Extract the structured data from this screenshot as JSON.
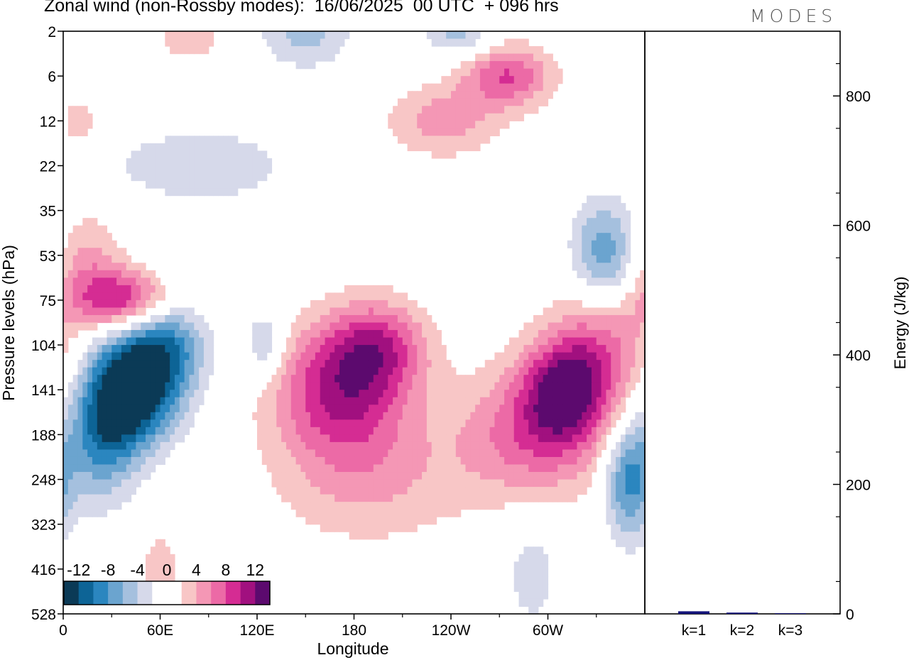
{
  "header": {
    "title": "Zonal wind (non-Rossby modes):  16/06/2025  00 UTC  + 096 hrs",
    "brand": "MODES"
  },
  "colors": {
    "levels": [
      "#0b3a56",
      "#0d6496",
      "#2b86bf",
      "#6ba4cf",
      "#a5c0de",
      "#d6d9ea",
      "#ffffff",
      "#ffffff",
      "#f8c6c6",
      "#f497b5",
      "#ec6aa6",
      "#d52c93",
      "#a1107f",
      "#5c0a6e"
    ],
    "bar": "#14147a"
  },
  "chart_data": [
    {
      "type": "heatmap",
      "xlabel": "Longitude",
      "ylabel": "Pressure levels (hPa)",
      "x_ticks": [
        "0",
        "60E",
        "120E",
        "180",
        "120W",
        "60W"
      ],
      "x_tick_values": [
        0,
        60,
        120,
        180,
        240,
        300
      ],
      "xlim": [
        0,
        360
      ],
      "y_ticks": [
        "2",
        "6",
        "12",
        "22",
        "35",
        "53",
        "75",
        "104",
        "141",
        "188",
        "248",
        "323",
        "416",
        "528"
      ],
      "colorbar": {
        "bounds": [
          -14,
          -12,
          -10,
          -8,
          -6,
          -4,
          -2,
          0,
          2,
          4,
          6,
          8,
          10,
          12,
          14
        ],
        "labels": [
          "-12",
          "-8",
          "-4",
          "0",
          "4",
          "8",
          "12"
        ]
      },
      "features": [
        {
          "lon": 42,
          "level": "141",
          "value": -14,
          "rx": 24,
          "ry": 1.3
        },
        {
          "lon": 65,
          "level": "104",
          "value": -9,
          "rx": 24,
          "ry": 1.4
        },
        {
          "lon": 22,
          "level": "188",
          "value": -8,
          "rx": 22,
          "ry": 1.5
        },
        {
          "lon": 40,
          "level": "75",
          "value": 11,
          "rx": 35,
          "ry": 0.7
        },
        {
          "lon": 15,
          "level": "53",
          "value": 4,
          "rx": 22,
          "ry": 1.0
        },
        {
          "lon": 172,
          "level": "141",
          "value": 10,
          "rx": 42,
          "ry": 1.5
        },
        {
          "lon": 195,
          "level": "104",
          "value": 7,
          "rx": 30,
          "ry": 1.0
        },
        {
          "lon": 190,
          "level": "248",
          "value": 4,
          "rx": 60,
          "ry": 1.5
        },
        {
          "lon": 310,
          "level": "141",
          "value": 10,
          "rx": 26,
          "ry": 1.2
        },
        {
          "lon": 335,
          "level": "104",
          "value": 6,
          "rx": 30,
          "ry": 1.5
        },
        {
          "lon": 290,
          "level": "188",
          "value": 7,
          "rx": 45,
          "ry": 1.5
        },
        {
          "lon": 350,
          "level": "248",
          "value": -9,
          "rx": 15,
          "ry": 1.3
        },
        {
          "lon": 335,
          "level": "53",
          "value": -8,
          "rx": 20,
          "ry": 1.2
        },
        {
          "lon": 150,
          "level": "2",
          "value": -5,
          "rx": 28,
          "ry": 0.8
        },
        {
          "lon": 275,
          "level": "6",
          "value": 8,
          "rx": 28,
          "ry": 0.7
        },
        {
          "lon": 245,
          "level": "2",
          "value": -5,
          "rx": 20,
          "ry": 0.6
        },
        {
          "lon": 235,
          "level": "12",
          "value": 5,
          "rx": 35,
          "ry": 0.8
        },
        {
          "lon": 125,
          "level": "104",
          "value": -5,
          "rx": 12,
          "ry": 0.8
        },
        {
          "lon": 85,
          "level": "22",
          "value": -4,
          "rx": 55,
          "ry": 0.8
        },
        {
          "lon": 290,
          "level": "416",
          "value": -3,
          "rx": 18,
          "ry": 1.5
        },
        {
          "lon": 60,
          "level": "416",
          "value": 3,
          "rx": 15,
          "ry": 1.0
        },
        {
          "lon": 10,
          "level": "12",
          "value": 4,
          "rx": 10,
          "ry": 0.5
        },
        {
          "lon": 78,
          "level": "2",
          "value": 4,
          "rx": 20,
          "ry": 0.7
        }
      ]
    },
    {
      "type": "bar",
      "categories": [
        "k=1",
        "k=2",
        "k=3"
      ],
      "values": [
        4,
        2,
        1
      ],
      "ylabel": "Energy (J/kg)",
      "y_ticks": [
        "0",
        "200",
        "400",
        "600",
        "800"
      ],
      "ylim": [
        0,
        900
      ]
    }
  ]
}
